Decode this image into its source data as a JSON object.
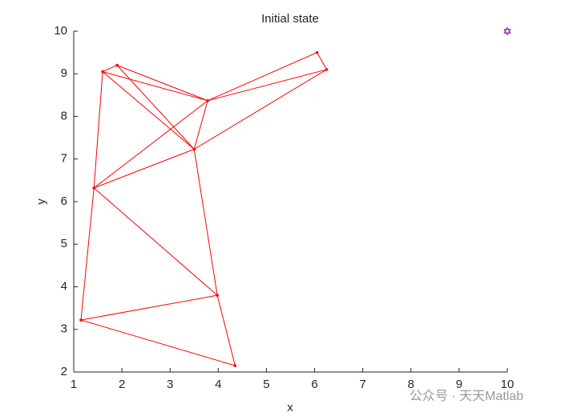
{
  "chart_data": {
    "type": "network",
    "title": "Initial state",
    "xlabel": "x",
    "ylabel": "y",
    "xlim": [
      1,
      10
    ],
    "ylim": [
      2,
      10
    ],
    "xticks": [
      1,
      2,
      3,
      4,
      5,
      6,
      7,
      8,
      9,
      10
    ],
    "yticks": [
      2,
      3,
      4,
      5,
      6,
      7,
      8,
      9,
      10
    ],
    "nodes": {
      "x": [
        1.6,
        1.9,
        3.78,
        3.5,
        1.42,
        6.05,
        6.25,
        3.98,
        1.15,
        4.35
      ],
      "y": [
        9.05,
        9.2,
        8.37,
        7.23,
        6.32,
        9.5,
        9.1,
        3.8,
        3.22,
        2.15
      ]
    },
    "edges": [
      [
        0,
        1
      ],
      [
        0,
        2
      ],
      [
        0,
        3
      ],
      [
        1,
        2
      ],
      [
        1,
        3
      ],
      [
        0,
        4
      ],
      [
        2,
        3
      ],
      [
        2,
        4
      ],
      [
        2,
        5
      ],
      [
        2,
        6
      ],
      [
        3,
        4
      ],
      [
        3,
        6
      ],
      [
        5,
        6
      ],
      [
        4,
        7
      ],
      [
        3,
        7
      ],
      [
        7,
        8
      ],
      [
        8,
        4
      ],
      [
        8,
        9
      ],
      [
        9,
        7
      ]
    ],
    "color": "#ff0000",
    "target": {
      "x": 10,
      "y": 10,
      "color": "#7e2f8e"
    },
    "watermark": "公众号 · 天天Matlab"
  }
}
